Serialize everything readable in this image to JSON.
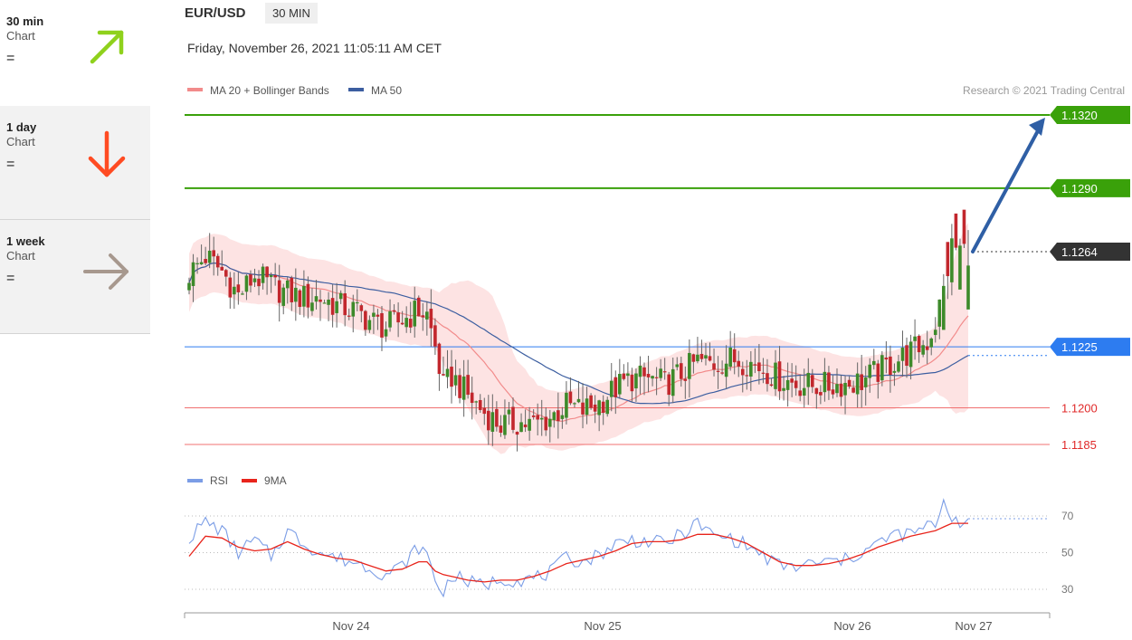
{
  "sidebar": {
    "items": [
      {
        "title": "30 min",
        "sub": "Chart",
        "eq": "=",
        "arrow": "up-right-arrow-icon",
        "color": "#8fd11c"
      },
      {
        "title": "1 day",
        "sub": "Chart",
        "eq": "=",
        "arrow": "down-arrow-icon",
        "color": "#ff4b22"
      },
      {
        "title": "1 week",
        "sub": "Chart",
        "eq": "=",
        "arrow": "right-arrow-icon",
        "color": "#a7988e"
      }
    ]
  },
  "header": {
    "pair": "EUR/USD",
    "interval": "30 MIN",
    "datetime": "Friday, November 26, 2021 11:05:11 AM CET"
  },
  "colors": {
    "resistance": "#3aa10a",
    "support": "#f07070",
    "pivot": "#2d7cf0",
    "current": "#333333",
    "ma20": "#f28b8b",
    "ma50": "#3c5ea0",
    "band": "#fde3e3",
    "up": "#3d8a2a",
    "down": "#c2272d",
    "rsi": "#7b9de6",
    "rsi_ma": "#e8241b",
    "target_arrow": "#2f5fa5"
  },
  "chart_data": [
    {
      "type": "candlestick",
      "legend": [
        {
          "name": "MA 20 + Bollinger Bands",
          "color": "#f28b8b"
        },
        {
          "name": "MA 50",
          "color": "#3c5ea0"
        }
      ],
      "credit": "Research © 2021 Trading Central",
      "x_ticks": [
        "Nov 24",
        "Nov 25",
        "Nov 26",
        "Nov 27"
      ],
      "ylim": [
        1.1177,
        1.1333
      ],
      "levels": [
        {
          "value": 1.132,
          "label": "1.1320",
          "kind": "resistance"
        },
        {
          "value": 1.129,
          "label": "1.1290",
          "kind": "resistance"
        },
        {
          "value": 1.1264,
          "label": "1.1264",
          "kind": "current"
        },
        {
          "value": 1.1225,
          "label": "1.1225",
          "kind": "pivot"
        },
        {
          "value": 1.12,
          "label": "1.1200",
          "kind": "support"
        },
        {
          "value": 1.1185,
          "label": "1.1185",
          "kind": "support"
        }
      ],
      "close_anchors": [
        [
          0,
          1.1255
        ],
        [
          4,
          1.1262
        ],
        [
          8,
          1.1256
        ],
        [
          12,
          1.1246
        ],
        [
          16,
          1.1254
        ],
        [
          20,
          1.125
        ],
        [
          24,
          1.1247
        ],
        [
          28,
          1.1245
        ],
        [
          32,
          1.1245
        ],
        [
          36,
          1.1242
        ],
        [
          40,
          1.124
        ],
        [
          44,
          1.1236
        ],
        [
          48,
          1.1233
        ],
        [
          52,
          1.1236
        ],
        [
          56,
          1.124
        ],
        [
          58,
          1.1238
        ],
        [
          60,
          1.1225
        ],
        [
          62,
          1.1208
        ],
        [
          64,
          1.1213
        ],
        [
          68,
          1.1205
        ],
        [
          72,
          1.1198
        ],
        [
          76,
          1.1193
        ],
        [
          80,
          1.1194
        ],
        [
          84,
          1.1193
        ],
        [
          88,
          1.1196
        ],
        [
          92,
          1.1201
        ],
        [
          96,
          1.1199
        ],
        [
          100,
          1.1202
        ],
        [
          104,
          1.1208
        ],
        [
          108,
          1.1212
        ],
        [
          112,
          1.1212
        ],
        [
          116,
          1.121
        ],
        [
          120,
          1.1214
        ],
        [
          124,
          1.1219
        ],
        [
          128,
          1.1218
        ],
        [
          132,
          1.122
        ],
        [
          136,
          1.1219
        ],
        [
          140,
          1.1216
        ],
        [
          144,
          1.1212
        ],
        [
          148,
          1.121
        ],
        [
          152,
          1.1209
        ],
        [
          156,
          1.1209
        ],
        [
          160,
          1.121
        ],
        [
          164,
          1.1211
        ],
        [
          168,
          1.1215
        ],
        [
          172,
          1.1219
        ],
        [
          176,
          1.1223
        ],
        [
          180,
          1.1227
        ],
        [
          182,
          1.1235
        ],
        [
          184,
          1.1248
        ],
        [
          186,
          1.1266
        ],
        [
          188,
          1.1265
        ],
        [
          190,
          1.1264
        ]
      ],
      "n_candles": 191
    },
    {
      "type": "line",
      "legend": [
        {
          "name": "RSI",
          "color": "#7b9de6"
        },
        {
          "name": "9MA",
          "color": "#e8241b"
        }
      ],
      "y_ticks": [
        70,
        50,
        30
      ],
      "ylim": [
        20,
        85
      ],
      "rsi_anchors": [
        [
          0,
          58
        ],
        [
          4,
          67
        ],
        [
          8,
          62
        ],
        [
          12,
          50
        ],
        [
          16,
          57
        ],
        [
          20,
          48
        ],
        [
          24,
          62
        ],
        [
          28,
          55
        ],
        [
          32,
          50
        ],
        [
          36,
          47
        ],
        [
          40,
          45
        ],
        [
          44,
          42
        ],
        [
          48,
          38
        ],
        [
          52,
          43
        ],
        [
          56,
          53
        ],
        [
          58,
          49
        ],
        [
          60,
          35
        ],
        [
          62,
          28
        ],
        [
          64,
          38
        ],
        [
          68,
          34
        ],
        [
          72,
          32
        ],
        [
          76,
          36
        ],
        [
          80,
          35
        ],
        [
          84,
          36
        ],
        [
          88,
          39
        ],
        [
          92,
          47
        ],
        [
          96,
          45
        ],
        [
          100,
          49
        ],
        [
          104,
          55
        ],
        [
          108,
          57
        ],
        [
          112,
          56
        ],
        [
          116,
          55
        ],
        [
          120,
          60
        ],
        [
          124,
          66
        ],
        [
          128,
          59
        ],
        [
          132,
          58
        ],
        [
          136,
          54
        ],
        [
          140,
          48
        ],
        [
          144,
          43
        ],
        [
          148,
          42
        ],
        [
          152,
          44
        ],
        [
          156,
          45
        ],
        [
          160,
          46
        ],
        [
          164,
          50
        ],
        [
          168,
          55
        ],
        [
          172,
          60
        ],
        [
          176,
          60
        ],
        [
          180,
          64
        ],
        [
          182,
          66
        ],
        [
          184,
          78
        ],
        [
          186,
          70
        ],
        [
          188,
          67
        ],
        [
          190,
          66
        ]
      ],
      "ma_anchors": [
        [
          0,
          48
        ],
        [
          4,
          59
        ],
        [
          8,
          58
        ],
        [
          12,
          53
        ],
        [
          16,
          51
        ],
        [
          20,
          52
        ],
        [
          24,
          56
        ],
        [
          28,
          52
        ],
        [
          32,
          49
        ],
        [
          36,
          47
        ],
        [
          40,
          46
        ],
        [
          44,
          43
        ],
        [
          48,
          40
        ],
        [
          52,
          41
        ],
        [
          56,
          45
        ],
        [
          58,
          45
        ],
        [
          60,
          40
        ],
        [
          62,
          38
        ],
        [
          64,
          37
        ],
        [
          68,
          35
        ],
        [
          72,
          34
        ],
        [
          76,
          35
        ],
        [
          80,
          35
        ],
        [
          84,
          37
        ],
        [
          88,
          40
        ],
        [
          92,
          44
        ],
        [
          96,
          46
        ],
        [
          100,
          48
        ],
        [
          104,
          51
        ],
        [
          108,
          55
        ],
        [
          112,
          56
        ],
        [
          116,
          56
        ],
        [
          120,
          57
        ],
        [
          124,
          60
        ],
        [
          128,
          60
        ],
        [
          132,
          58
        ],
        [
          136,
          55
        ],
        [
          140,
          50
        ],
        [
          144,
          45
        ],
        [
          148,
          43
        ],
        [
          152,
          43
        ],
        [
          156,
          44
        ],
        [
          160,
          46
        ],
        [
          164,
          49
        ],
        [
          168,
          53
        ],
        [
          172,
          56
        ],
        [
          176,
          59
        ],
        [
          180,
          61
        ],
        [
          182,
          62
        ],
        [
          184,
          64
        ],
        [
          186,
          66
        ],
        [
          188,
          66
        ],
        [
          190,
          66
        ]
      ]
    }
  ]
}
